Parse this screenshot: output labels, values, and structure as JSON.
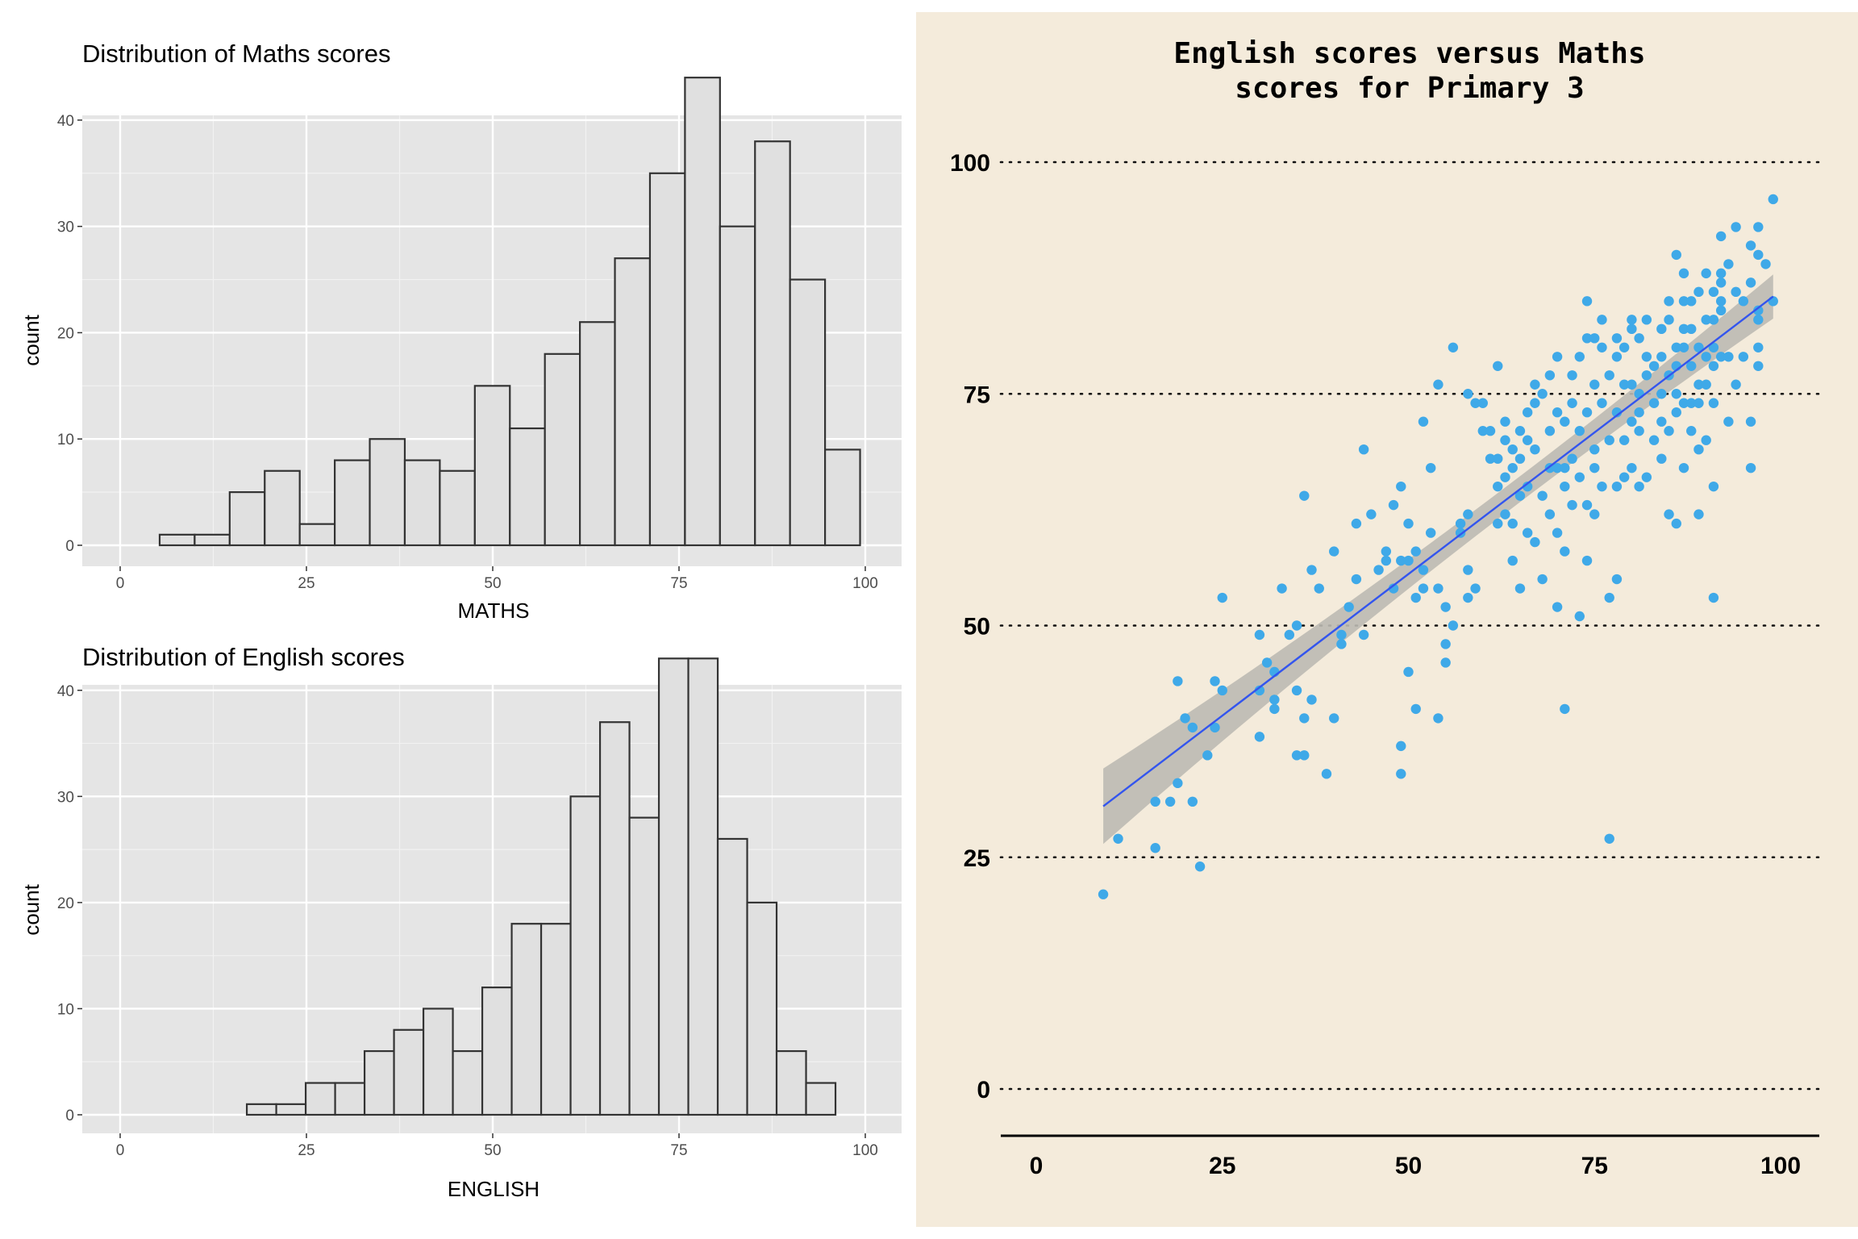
{
  "chart_data": [
    {
      "type": "bar",
      "title": "Distribution of Maths scores",
      "xlabel": "MATHS",
      "ylabel": "count",
      "xlim": [
        0,
        100
      ],
      "ylim": [
        0,
        45
      ],
      "xticks": [
        0,
        25,
        50,
        75,
        100
      ],
      "yticks": [
        0,
        10,
        20,
        30,
        40
      ],
      "grid": true,
      "bin_width": 4.7,
      "bin_start": 5.3,
      "values": [
        1,
        1,
        5,
        7,
        2,
        8,
        10,
        8,
        7,
        15,
        11,
        18,
        21,
        27,
        35,
        44,
        30,
        38,
        25,
        9
      ]
    },
    {
      "type": "bar",
      "title": "Distribution of English scores",
      "xlabel": "ENGLISH",
      "ylabel": "count",
      "xlim": [
        0,
        100
      ],
      "ylim": [
        0,
        45
      ],
      "xticks": [
        0,
        25,
        50,
        75,
        100
      ],
      "yticks": [
        0,
        10,
        20,
        30,
        40
      ],
      "grid": true,
      "bin_width": 3.95,
      "bin_start": 17.0,
      "values": [
        1,
        1,
        3,
        3,
        6,
        8,
        10,
        6,
        12,
        18,
        18,
        30,
        37,
        28,
        43,
        43,
        26,
        20,
        6,
        3
      ]
    },
    {
      "type": "scatter",
      "title": "English scores versus Maths scores for Primary 3",
      "xticks": [
        0,
        25,
        50,
        75,
        100
      ],
      "yticks": [
        0,
        25,
        50,
        75,
        100
      ],
      "xlim": [
        0,
        100
      ],
      "ylim": [
        0,
        100
      ],
      "grid": "dotted horizontal",
      "colors": {
        "points": "#3fa9e8",
        "trend": "#3355ee",
        "band": "#bdbab2",
        "background": "#f4ebdb"
      },
      "trend_line": {
        "x": [
          9,
          99
        ],
        "y": [
          30.5,
          85.5
        ]
      },
      "points": [
        [
          9,
          21
        ],
        [
          11,
          27
        ],
        [
          16,
          26
        ],
        [
          16,
          31
        ],
        [
          18,
          31
        ],
        [
          19,
          33
        ],
        [
          19,
          44
        ],
        [
          20,
          40
        ],
        [
          21,
          39
        ],
        [
          21,
          31
        ],
        [
          22,
          24
        ],
        [
          23,
          36
        ],
        [
          24,
          44
        ],
        [
          24,
          39
        ],
        [
          25,
          43
        ],
        [
          25,
          53
        ],
        [
          30,
          49
        ],
        [
          30,
          43
        ],
        [
          30,
          38
        ],
        [
          31,
          46
        ],
        [
          32,
          45
        ],
        [
          32,
          41
        ],
        [
          32,
          42
        ],
        [
          33,
          54
        ],
        [
          34,
          49
        ],
        [
          35,
          43
        ],
        [
          35,
          50
        ],
        [
          35,
          36
        ],
        [
          36,
          64
        ],
        [
          36,
          36
        ],
        [
          36,
          40
        ],
        [
          37,
          56
        ],
        [
          37,
          42
        ],
        [
          38,
          54
        ],
        [
          39,
          34
        ],
        [
          40,
          58
        ],
        [
          40,
          40
        ],
        [
          41,
          49
        ],
        [
          41,
          48
        ],
        [
          42,
          52
        ],
        [
          43,
          61
        ],
        [
          43,
          55
        ],
        [
          44,
          69
        ],
        [
          44,
          49
        ],
        [
          45,
          62
        ],
        [
          46,
          56
        ],
        [
          47,
          58
        ],
        [
          47,
          57
        ],
        [
          48,
          54
        ],
        [
          48,
          63
        ],
        [
          49,
          57
        ],
        [
          49,
          65
        ],
        [
          49,
          37
        ],
        [
          49,
          34
        ],
        [
          50,
          57
        ],
        [
          50,
          45
        ],
        [
          50,
          61
        ],
        [
          51,
          41
        ],
        [
          51,
          53
        ],
        [
          51,
          58
        ],
        [
          52,
          72
        ],
        [
          52,
          56
        ],
        [
          52,
          54
        ],
        [
          53,
          67
        ],
        [
          53,
          60
        ],
        [
          54,
          54
        ],
        [
          54,
          40
        ],
        [
          54,
          76
        ],
        [
          55,
          46
        ],
        [
          55,
          48
        ],
        [
          55,
          52
        ],
        [
          56,
          50
        ],
        [
          56,
          80
        ],
        [
          57,
          60
        ],
        [
          57,
          61
        ],
        [
          58,
          56
        ],
        [
          58,
          53
        ],
        [
          58,
          62
        ],
        [
          58,
          75
        ],
        [
          59,
          54
        ],
        [
          59,
          74
        ],
        [
          60,
          74
        ],
        [
          60,
          71
        ],
        [
          61,
          68
        ],
        [
          61,
          71
        ],
        [
          62,
          68
        ],
        [
          62,
          78
        ],
        [
          62,
          61
        ],
        [
          62,
          65
        ],
        [
          63,
          62
        ],
        [
          63,
          72
        ],
        [
          63,
          70
        ],
        [
          63,
          66
        ],
        [
          64,
          69
        ],
        [
          64,
          67
        ],
        [
          64,
          57
        ],
        [
          64,
          61
        ],
        [
          65,
          64
        ],
        [
          65,
          68
        ],
        [
          65,
          54
        ],
        [
          65,
          71
        ],
        [
          66,
          60
        ],
        [
          66,
          65
        ],
        [
          66,
          70
        ],
        [
          66,
          73
        ],
        [
          67,
          59
        ],
        [
          67,
          69
        ],
        [
          67,
          74
        ],
        [
          67,
          76
        ],
        [
          68,
          55
        ],
        [
          68,
          64
        ],
        [
          68,
          75
        ],
        [
          69,
          62
        ],
        [
          69,
          67
        ],
        [
          69,
          71
        ],
        [
          69,
          77
        ],
        [
          70,
          60
        ],
        [
          70,
          52
        ],
        [
          70,
          73
        ],
        [
          70,
          67
        ],
        [
          70,
          79
        ],
        [
          71,
          41
        ],
        [
          71,
          58
        ],
        [
          71,
          65
        ],
        [
          71,
          72
        ],
        [
          71,
          67
        ],
        [
          72,
          63
        ],
        [
          72,
          68
        ],
        [
          72,
          74
        ],
        [
          72,
          77
        ],
        [
          73,
          66
        ],
        [
          73,
          71
        ],
        [
          73,
          79
        ],
        [
          73,
          51
        ],
        [
          74,
          57
        ],
        [
          74,
          63
        ],
        [
          74,
          73
        ],
        [
          74,
          85
        ],
        [
          74,
          81
        ],
        [
          75,
          76
        ],
        [
          75,
          62
        ],
        [
          75,
          67
        ],
        [
          75,
          81
        ],
        [
          75,
          69
        ],
        [
          76,
          74
        ],
        [
          76,
          80
        ],
        [
          76,
          83
        ],
        [
          76,
          65
        ],
        [
          77,
          70
        ],
        [
          77,
          53
        ],
        [
          77,
          27
        ],
        [
          77,
          77
        ],
        [
          78,
          55
        ],
        [
          78,
          65
        ],
        [
          78,
          73
        ],
        [
          78,
          79
        ],
        [
          78,
          81
        ],
        [
          79,
          66
        ],
        [
          79,
          70
        ],
        [
          79,
          76
        ],
        [
          79,
          80
        ],
        [
          80,
          67
        ],
        [
          80,
          72
        ],
        [
          80,
          76
        ],
        [
          80,
          82
        ],
        [
          80,
          83
        ],
        [
          81,
          65
        ],
        [
          81,
          71
        ],
        [
          81,
          75
        ],
        [
          81,
          81
        ],
        [
          81,
          73
        ],
        [
          82,
          66
        ],
        [
          82,
          77
        ],
        [
          82,
          83
        ],
        [
          82,
          79
        ],
        [
          83,
          70
        ],
        [
          83,
          74
        ],
        [
          83,
          78
        ],
        [
          84,
          68
        ],
        [
          84,
          72
        ],
        [
          84,
          75
        ],
        [
          84,
          79
        ],
        [
          84,
          82
        ],
        [
          85,
          62
        ],
        [
          85,
          71
        ],
        [
          85,
          77
        ],
        [
          85,
          83
        ],
        [
          85,
          85
        ],
        [
          86,
          61
        ],
        [
          86,
          73
        ],
        [
          86,
          75
        ],
        [
          86,
          78
        ],
        [
          86,
          80
        ],
        [
          86,
          90
        ],
        [
          87,
          67
        ],
        [
          87,
          74
        ],
        [
          87,
          80
        ],
        [
          87,
          82
        ],
        [
          87,
          85
        ],
        [
          87,
          88
        ],
        [
          88,
          71
        ],
        [
          88,
          74
        ],
        [
          88,
          78
        ],
        [
          88,
          82
        ],
        [
          88,
          85
        ],
        [
          89,
          62
        ],
        [
          89,
          69
        ],
        [
          89,
          74
        ],
        [
          89,
          76
        ],
        [
          89,
          80
        ],
        [
          89,
          86
        ],
        [
          90,
          70
        ],
        [
          90,
          76
        ],
        [
          90,
          79
        ],
        [
          90,
          83
        ],
        [
          90,
          88
        ],
        [
          91,
          74
        ],
        [
          91,
          78
        ],
        [
          91,
          80
        ],
        [
          91,
          83
        ],
        [
          91,
          86
        ],
        [
          91,
          65
        ],
        [
          91,
          53
        ],
        [
          92,
          79
        ],
        [
          92,
          85
        ],
        [
          92,
          87
        ],
        [
          92,
          84
        ],
        [
          92,
          92
        ],
        [
          92,
          88
        ],
        [
          93,
          72
        ],
        [
          93,
          79
        ],
        [
          93,
          89
        ],
        [
          94,
          76
        ],
        [
          94,
          86
        ],
        [
          94,
          93
        ],
        [
          95,
          79
        ],
        [
          95,
          85
        ],
        [
          96,
          67
        ],
        [
          96,
          72
        ],
        [
          96,
          87
        ],
        [
          96,
          91
        ],
        [
          97,
          78
        ],
        [
          97,
          80
        ],
        [
          97,
          83
        ],
        [
          97,
          84
        ],
        [
          97,
          90
        ],
        [
          97,
          93
        ],
        [
          98,
          89
        ],
        [
          99,
          85
        ],
        [
          99,
          96
        ]
      ]
    }
  ]
}
